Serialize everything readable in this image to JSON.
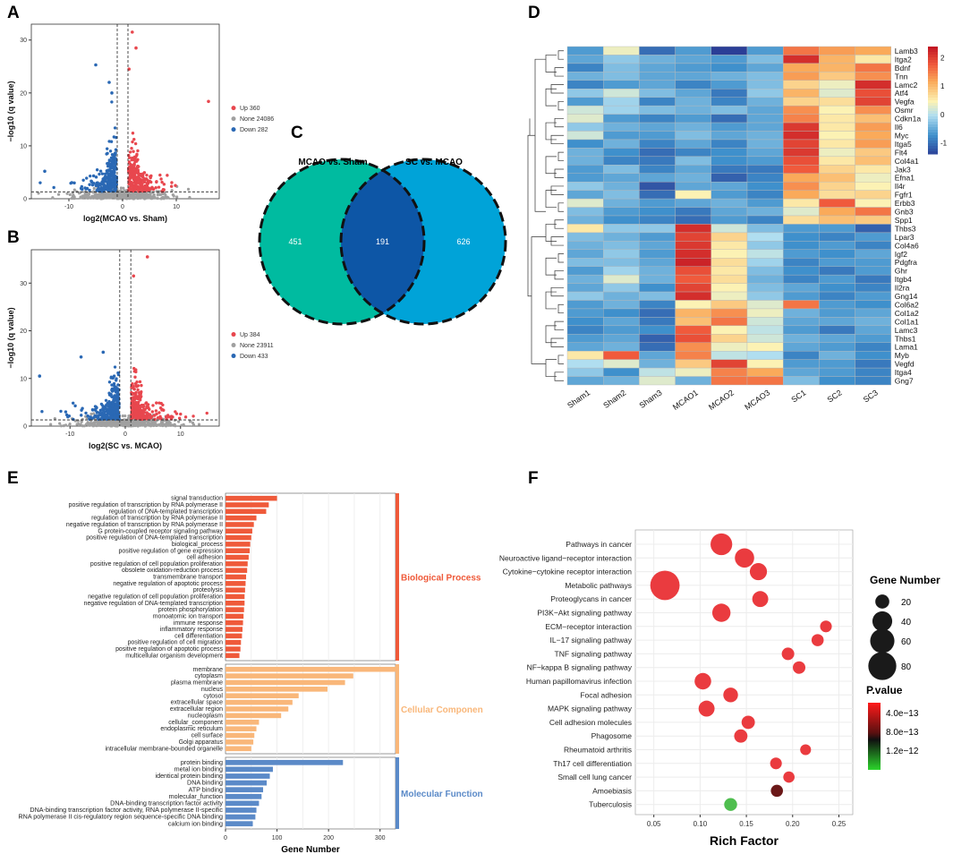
{
  "panels": {
    "A": "A",
    "B": "B",
    "C": "C",
    "D": "D",
    "E": "E",
    "F": "F"
  },
  "colors": {
    "up": "#e8474e",
    "none": "#a0a0a0",
    "down": "#2a68b4",
    "venn_left": "#00bba0",
    "venn_right": "#00a3d8",
    "venn_overlap": "#0d56a6",
    "bp": "#ef5a3a",
    "cc": "#f9b77a",
    "mf": "#5b8ac8"
  },
  "chart_data": [
    {
      "type": "scatter",
      "id": "volcano_A",
      "title": "",
      "xlabel": "log2(MCAO vs. Sham)",
      "ylabel": "−log10 (q value)",
      "xlim": [
        -17,
        18
      ],
      "ylim": [
        0,
        33
      ],
      "xticks": [
        -10,
        0,
        10
      ],
      "yticks": [
        0,
        10,
        20,
        30
      ],
      "fc_cutoff": [
        -1,
        1
      ],
      "q_cutoff": 1.3,
      "legend": [
        {
          "label": "Up 360",
          "class": "up"
        },
        {
          "label": "None 24086",
          "class": "none"
        },
        {
          "label": "Down 282",
          "class": "down"
        }
      ],
      "highlighted_points": [
        {
          "x": 1.8,
          "y": 31.5,
          "class": "up"
        },
        {
          "x": 16.0,
          "y": 18.4,
          "class": "up"
        },
        {
          "x": -5.0,
          "y": 25.3,
          "class": "down"
        },
        {
          "x": -14.5,
          "y": 5.2,
          "class": "down"
        },
        {
          "x": -2.5,
          "y": 22.0,
          "class": "down"
        },
        {
          "x": -2.0,
          "y": 20.0,
          "class": "down"
        },
        {
          "x": 1.2,
          "y": 24.5,
          "class": "up"
        },
        {
          "x": 2.5,
          "y": 28.5,
          "class": "up"
        }
      ]
    },
    {
      "type": "scatter",
      "id": "volcano_B",
      "xlabel": "log2(SC vs. MCAO)",
      "ylabel": "−log10 (q value)",
      "xlim": [
        -17,
        17
      ],
      "ylim": [
        0,
        37
      ],
      "xticks": [
        -10,
        0,
        10
      ],
      "yticks": [
        0,
        10,
        20,
        30
      ],
      "fc_cutoff": [
        -1,
        1
      ],
      "q_cutoff": 1.3,
      "legend": [
        {
          "label": "Up 384",
          "class": "up"
        },
        {
          "label": "None 23911",
          "class": "none"
        },
        {
          "label": "Down 433",
          "class": "down"
        }
      ],
      "highlighted_points": [
        {
          "x": 4.0,
          "y": 35.5,
          "class": "up"
        },
        {
          "x": 1.5,
          "y": 31.5,
          "class": "up"
        },
        {
          "x": -15.5,
          "y": 10.5,
          "class": "down"
        },
        {
          "x": -8.0,
          "y": 14.5,
          "class": "down"
        },
        {
          "x": -4.0,
          "y": 15.5,
          "class": "down"
        }
      ]
    },
    {
      "type": "venn",
      "id": "venn_C",
      "sets": [
        {
          "name": "MCAO vs. Sham",
          "only": 451
        },
        {
          "name": "SC vs. MCAO",
          "only": 626
        }
      ],
      "intersection": 191
    },
    {
      "type": "heatmap",
      "id": "heatmap_D",
      "columns": [
        "Sham1",
        "Sham2",
        "Sham3",
        "MCAO1",
        "MCAO2",
        "MCAO3",
        "SC1",
        "SC2",
        "SC3"
      ],
      "rows": [
        "Lamb3",
        "Itga2",
        "Bdnf",
        "Tnn",
        "Lamc2",
        "Atf4",
        "Vegfa",
        "Osmr",
        "Cdkn1a",
        "Il6",
        "Myc",
        "Itga5",
        "Flt4",
        "Col4a1",
        "Jak3",
        "Efna1",
        "Il4r",
        "Fgfr1",
        "Erbb3",
        "Gnb3",
        "Spp1",
        "Thbs3",
        "Lpar3",
        "Col4a6",
        "Igf2",
        "Pdgfra",
        "Ghr",
        "Itgb4",
        "Il2ra",
        "Gng14",
        "Col6a2",
        "Col1a2",
        "Col1a1",
        "Lamc3",
        "Thbs1",
        "Lama1",
        "Myb",
        "Vegfd",
        "Itga4",
        "Gng7"
      ],
      "scale": {
        "min": -1.4,
        "max": 2.4,
        "ticks": [
          -1,
          0,
          1,
          2
        ]
      },
      "values": [
        [
          -0.6,
          0.4,
          -1.0,
          -0.6,
          -1.4,
          -0.6,
          1.6,
          1.3,
          1.2
        ],
        [
          -0.5,
          -0.2,
          -0.4,
          -0.5,
          -0.6,
          -0.3,
          2.2,
          1.1,
          0.6
        ],
        [
          -0.8,
          -0.3,
          -0.5,
          -0.6,
          -0.7,
          -0.5,
          1.2,
          1.1,
          1.6
        ],
        [
          -0.4,
          -0.3,
          -0.5,
          -0.5,
          -0.4,
          -0.3,
          1.3,
          0.9,
          1.4
        ],
        [
          -0.8,
          -0.6,
          -0.5,
          -0.8,
          -0.6,
          -0.3,
          0.8,
          0.4,
          2.2
        ],
        [
          -0.2,
          0.2,
          -0.3,
          -0.5,
          -0.9,
          -0.2,
          1.1,
          0.3,
          1.9
        ],
        [
          -0.6,
          -0.1,
          -0.8,
          -0.4,
          -0.8,
          -0.4,
          0.8,
          0.7,
          2.0
        ],
        [
          0.2,
          -0.1,
          -0.3,
          -0.4,
          -0.3,
          -0.5,
          1.4,
          0.5,
          1.4
        ],
        [
          0.3,
          -0.6,
          -0.8,
          -0.6,
          -1.0,
          -0.5,
          1.5,
          0.6,
          1.0
        ],
        [
          -0.2,
          -0.4,
          -0.5,
          -0.4,
          -0.6,
          -0.5,
          2.1,
          0.6,
          1.3
        ],
        [
          0.2,
          -0.6,
          -0.6,
          -0.3,
          -0.5,
          -0.4,
          2.2,
          0.5,
          1.2
        ],
        [
          -0.7,
          -0.4,
          -0.8,
          -0.5,
          -0.8,
          -0.4,
          2.0,
          0.6,
          1.3
        ],
        [
          -0.4,
          -0.7,
          -1.0,
          -0.8,
          -0.7,
          -0.5,
          2.1,
          0.4,
          0.9
        ],
        [
          -0.4,
          -0.8,
          -0.9,
          -0.3,
          -0.7,
          -0.6,
          1.9,
          0.6,
          1.0
        ],
        [
          -0.6,
          -0.3,
          -0.8,
          -0.5,
          -0.9,
          -0.9,
          1.8,
          0.8,
          0.6
        ],
        [
          -0.6,
          -0.5,
          -0.5,
          -0.4,
          -1.1,
          -0.8,
          1.2,
          1.0,
          0.4
        ],
        [
          -0.2,
          -0.4,
          -1.2,
          -0.5,
          -0.5,
          -0.7,
          1.4,
          0.8,
          0.5
        ],
        [
          -0.5,
          -0.3,
          -1.0,
          0.5,
          -0.6,
          -0.8,
          1.2,
          0.7,
          0.8
        ],
        [
          0.3,
          -0.4,
          -0.6,
          -0.5,
          -0.4,
          -0.6,
          0.6,
          1.8,
          0.5
        ],
        [
          -0.3,
          -0.6,
          -0.7,
          -0.9,
          -0.5,
          -0.4,
          0.3,
          1.2,
          1.6
        ],
        [
          -0.4,
          -0.7,
          -0.8,
          -1.0,
          -0.6,
          -0.8,
          0.7,
          1.0,
          0.9
        ],
        [
          0.6,
          -0.2,
          -0.2,
          2.2,
          0.2,
          -0.3,
          -0.6,
          -0.6,
          -1.1
        ],
        [
          -0.3,
          -0.4,
          -0.6,
          2.0,
          0.8,
          0.0,
          -0.7,
          -0.8,
          -0.6
        ],
        [
          -0.4,
          -0.3,
          -0.5,
          2.1,
          0.6,
          -0.2,
          -0.7,
          -0.6,
          -0.8
        ],
        [
          -0.5,
          -0.2,
          -0.6,
          2.2,
          0.5,
          0.1,
          -0.6,
          -0.7,
          -0.5
        ],
        [
          -0.3,
          -0.3,
          -0.5,
          2.3,
          0.7,
          -0.1,
          -0.8,
          -0.6,
          -0.6
        ],
        [
          -0.6,
          -0.1,
          -0.4,
          1.9,
          0.6,
          -0.3,
          -0.7,
          -0.9,
          -0.6
        ],
        [
          -0.4,
          0.3,
          -0.4,
          1.8,
          0.7,
          -0.4,
          -0.8,
          -0.6,
          -0.9
        ],
        [
          -0.5,
          -0.2,
          -0.7,
          2.0,
          0.5,
          -0.3,
          -0.5,
          -0.7,
          -0.8
        ],
        [
          -0.2,
          -0.4,
          -0.3,
          2.2,
          0.4,
          -0.2,
          -0.6,
          -0.8,
          -0.6
        ],
        [
          -0.6,
          -0.4,
          -0.8,
          0.5,
          0.9,
          0.3,
          1.6,
          -0.6,
          -0.7
        ],
        [
          -0.6,
          -0.7,
          -1.0,
          1.1,
          1.4,
          0.4,
          -0.4,
          -0.6,
          -0.5
        ],
        [
          -0.7,
          -0.5,
          -0.9,
          1.0,
          1.6,
          0.2,
          -0.5,
          -0.5,
          -0.4
        ],
        [
          -0.8,
          -0.6,
          -0.7,
          1.8,
          0.5,
          0.1,
          -0.6,
          -0.9,
          -0.5
        ],
        [
          -0.6,
          -0.5,
          -1.1,
          1.9,
          0.8,
          0.2,
          -0.4,
          -0.5,
          -0.6
        ],
        [
          -0.5,
          -0.4,
          -1.0,
          1.4,
          0.4,
          0.5,
          -0.5,
          -0.6,
          -0.8
        ],
        [
          0.6,
          1.8,
          -0.5,
          1.5,
          0.1,
          0.0,
          -0.8,
          -0.4,
          -0.7
        ],
        [
          0.0,
          0.3,
          -0.4,
          0.9,
          2.0,
          0.5,
          -0.6,
          -0.6,
          -0.9
        ],
        [
          -0.2,
          -0.7,
          0.1,
          0.4,
          1.5,
          1.2,
          -0.5,
          -0.6,
          -0.8
        ],
        [
          -0.5,
          -0.4,
          0.3,
          -0.4,
          1.6,
          1.6,
          -0.3,
          -0.7,
          -0.8
        ]
      ]
    },
    {
      "type": "bar",
      "id": "go_E",
      "orientation": "horizontal",
      "xlabel": "Gene Number",
      "xlim": [
        0,
        330
      ],
      "xticks": [
        0,
        100,
        200,
        300
      ],
      "groups": [
        {
          "name": "Biological Process",
          "color_key": "bp",
          "categories": [
            "signal transduction",
            "positive regulation of transcription by RNA polymerase II",
            "regulation of DNA-templated transcription",
            "regulation of transcription by RNA polymerase II",
            "negative regulation of transcription by RNA polymerase II",
            "G protein-coupled receptor signaling pathway",
            "positive regulation of DNA-templated transcription",
            "biological_process",
            "positive regulation of gene expression",
            "cell adhesion",
            "positive regulation of cell population proliferation",
            "obsolete oxidation-reduction process",
            "transmembrane transport",
            "negative regulation of apoptotic process",
            "proteolysis",
            "negative regulation of cell population proliferation",
            "negative regulation of DNA-templated transcription",
            "protein phosphorylation",
            "monoatomic ion transport",
            "immune response",
            "inflammatory response",
            "cell differentiation",
            "positive regulation of cell migration",
            "positive regulation of apoptotic process",
            "multicellular organism development"
          ],
          "values": [
            100,
            84,
            79,
            60,
            55,
            52,
            50,
            48,
            47,
            45,
            43,
            42,
            40,
            39,
            38,
            37,
            37,
            36,
            35,
            34,
            33,
            32,
            30,
            29,
            27
          ]
        },
        {
          "name": "Cellular Componen",
          "color_key": "cc",
          "categories": [
            "membrane",
            "cytoplasm",
            "plasma membrane",
            "nucleus",
            "cytosol",
            "extracellular space",
            "extracellular region",
            "nucleoplasm",
            "cellular_component",
            "endoplasmic reticulum",
            "cell surface",
            "Golgi apparatus",
            "intracellular membrane-bounded organelle"
          ],
          "values": [
            330,
            248,
            232,
            198,
            142,
            130,
            122,
            108,
            65,
            60,
            56,
            54,
            50
          ]
        },
        {
          "name": "Molecular Function",
          "color_key": "mf",
          "categories": [
            "protein binding",
            "metal ion binding",
            "identical protein binding",
            "DNA binding",
            "ATP binding",
            "molecular_function",
            "DNA-binding transcription factor activity",
            "DNA-binding transcription factor activity, RNA polymerase II-specific",
            "RNA polymerase II cis-regulatory region sequence-specific DNA binding",
            "calcium ion binding"
          ],
          "values": [
            228,
            92,
            86,
            80,
            73,
            70,
            65,
            60,
            58,
            53
          ]
        }
      ]
    },
    {
      "type": "scatter",
      "id": "kegg_F",
      "subtype": "bubble",
      "xlabel": "Rich Factor",
      "xlim": [
        0.03,
        0.265
      ],
      "xticks": [
        0.05,
        0.1,
        0.15,
        0.2,
        0.25
      ],
      "xtick_labels": [
        "0.05",
        "0.10",
        "0.15",
        "0.20",
        "0.25"
      ],
      "size_legend_title": "Gene Number",
      "size_legend": [
        20,
        40,
        60,
        80
      ],
      "color_legend_title": "P.value",
      "color_legend_labels": [
        "4.0e−13",
        "8.0e−13",
        "1.2e−12"
      ],
      "pathways": [
        {
          "name": "Pathways in cancer",
          "rich": 0.123,
          "count": 48,
          "p": 2e-14
        },
        {
          "name": "Neuroactive ligand−receptor interaction",
          "rich": 0.148,
          "count": 38,
          "p": 2e-14
        },
        {
          "name": "Cytokine−cytokine receptor interaction",
          "rich": 0.163,
          "count": 30,
          "p": 2e-14
        },
        {
          "name": "Metabolic pathways",
          "rich": 0.062,
          "count": 88,
          "p": 2e-14
        },
        {
          "name": "Proteoglycans in cancer",
          "rich": 0.165,
          "count": 26,
          "p": 3e-14
        },
        {
          "name": "PI3K−Akt signaling pathway",
          "rich": 0.123,
          "count": 34,
          "p": 3e-14
        },
        {
          "name": "ECM−receptor interaction",
          "rich": 0.236,
          "count": 14,
          "p": 3e-14
        },
        {
          "name": "IL−17 signaling pathway",
          "rich": 0.227,
          "count": 15,
          "p": 4e-14
        },
        {
          "name": "TNF signaling pathway",
          "rich": 0.195,
          "count": 16,
          "p": 5e-14
        },
        {
          "name": "NF−kappa B signaling pathway",
          "rich": 0.207,
          "count": 16,
          "p": 5e-14
        },
        {
          "name": "Human papillomavirus infection",
          "rich": 0.103,
          "count": 28,
          "p": 5e-14
        },
        {
          "name": "Focal adhesion",
          "rich": 0.133,
          "count": 22,
          "p": 6e-14
        },
        {
          "name": "MAPK signaling pathway",
          "rich": 0.107,
          "count": 26,
          "p": 6e-14
        },
        {
          "name": "Cell adhesion molecules",
          "rich": 0.152,
          "count": 18,
          "p": 8e-14
        },
        {
          "name": "Phagosome",
          "rich": 0.144,
          "count": 18,
          "p": 9e-14
        },
        {
          "name": "Rheumatoid arthritis",
          "rich": 0.214,
          "count": 12,
          "p": 1e-13
        },
        {
          "name": "Th17 cell differentiation",
          "rich": 0.182,
          "count": 14,
          "p": 1.2e-13
        },
        {
          "name": "Small cell lung cancer",
          "rich": 0.196,
          "count": 13,
          "p": 1.5e-13
        },
        {
          "name": "Amoebiasis",
          "rich": 0.183,
          "count": 15,
          "p": 7e-13
        },
        {
          "name": "Tuberculosis",
          "rich": 0.133,
          "count": 17,
          "p": 1.2e-12
        }
      ]
    }
  ]
}
